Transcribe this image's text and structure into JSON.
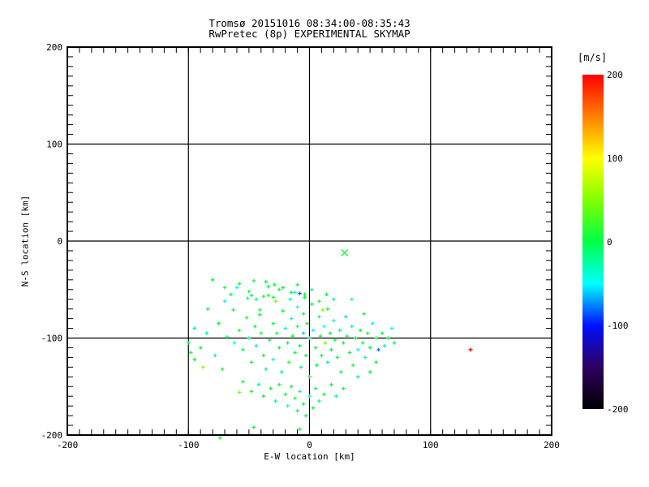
{
  "page": {
    "background": "#ffffff",
    "foreground": "#000000"
  },
  "chart_data": {
    "type": "scatter",
    "title": "Tromsø 20151016 08:34:00-08:35:43",
    "subtitle": "RwPretec (8p) EXPERIMENTAL SKYMAP",
    "xlabel": "E-W location [km]",
    "ylabel": "N-S location [km]",
    "xlim": [
      -200,
      200
    ],
    "ylim": [
      -200,
      200
    ],
    "xticks": [
      -200,
      -100,
      0,
      100,
      200
    ],
    "yticks": [
      -200,
      -100,
      0,
      100,
      200
    ],
    "minor_tick_step": 10,
    "grid": true,
    "axis_color": "#000000",
    "marker": "plus",
    "legend_position": "colorbar-right",
    "colorbar": {
      "label": "[m/s]",
      "min": -200,
      "max": 200,
      "ticks": [
        200,
        100,
        0,
        -100,
        -200
      ],
      "stops": [
        [
          -200,
          "#000000"
        ],
        [
          -150,
          "#2e0060"
        ],
        [
          -100,
          "#0010ff"
        ],
        [
          -50,
          "#00ffff"
        ],
        [
          0,
          "#00ff46"
        ],
        [
          50,
          "#80ff00"
        ],
        [
          100,
          "#ffff00"
        ],
        [
          150,
          "#ff8000"
        ],
        [
          200,
          "#ff0000"
        ]
      ]
    },
    "points": [
      [
        -80,
        -40,
        0
      ],
      [
        -60,
        -48,
        -45
      ],
      [
        -46,
        -41,
        5
      ],
      [
        -34,
        -47,
        0
      ],
      [
        -29,
        -45,
        8
      ],
      [
        -25,
        -50,
        10
      ],
      [
        -48,
        -56,
        0
      ],
      [
        -51,
        -59,
        -25
      ],
      [
        -38,
        -57,
        5
      ],
      [
        -34,
        -56,
        12
      ],
      [
        -15,
        -53,
        0
      ],
      [
        -12,
        -53,
        -50
      ],
      [
        -8,
        -54,
        -85
      ],
      [
        -4,
        -55,
        5
      ],
      [
        -63,
        -71,
        0
      ],
      [
        -52,
        -79,
        15
      ],
      [
        -41,
        -71,
        8
      ],
      [
        -41,
        -76,
        0
      ],
      [
        -70,
        -62,
        -40
      ],
      [
        -75,
        -85,
        0
      ],
      [
        -85,
        -95,
        -30
      ],
      [
        -90,
        -110,
        5
      ],
      [
        -95,
        -122,
        0
      ],
      [
        -78,
        -118,
        -20
      ],
      [
        -72,
        -132,
        8
      ],
      [
        -68,
        -99,
        0
      ],
      [
        -62,
        -105,
        -45
      ],
      [
        -58,
        -92,
        10
      ],
      [
        -55,
        -112,
        0
      ],
      [
        -50,
        -100,
        -30
      ],
      [
        -48,
        -125,
        5
      ],
      [
        -45,
        -88,
        0
      ],
      [
        -44,
        -108,
        -55
      ],
      [
        -40,
        -95,
        12
      ],
      [
        -38,
        -118,
        0
      ],
      [
        -36,
        -132,
        -20
      ],
      [
        -33,
        -102,
        5
      ],
      [
        -30,
        -85,
        0
      ],
      [
        -30,
        -122,
        -40
      ],
      [
        -28,
        -62,
        45
      ],
      [
        -27,
        -95,
        8
      ],
      [
        -25,
        -110,
        0
      ],
      [
        -23,
        -135,
        -25
      ],
      [
        -22,
        -72,
        5
      ],
      [
        -20,
        -90,
        -50
      ],
      [
        -18,
        -105,
        0
      ],
      [
        -17,
        -125,
        10
      ],
      [
        -15,
        -80,
        -30
      ],
      [
        -14,
        -98,
        5
      ],
      [
        -12,
        -115,
        0
      ],
      [
        -10,
        -68,
        -45
      ],
      [
        -10,
        -88,
        8
      ],
      [
        -8,
        -108,
        0
      ],
      [
        -7,
        -130,
        -20
      ],
      [
        -5,
        -75,
        5
      ],
      [
        -5,
        -95,
        -60
      ],
      [
        -3,
        -118,
        0
      ],
      [
        -2,
        -85,
        10
      ],
      [
        0,
        -100,
        -35
      ],
      [
        0,
        -140,
        5
      ],
      [
        2,
        -65,
        0
      ],
      [
        3,
        -92,
        -45
      ],
      [
        5,
        -110,
        8
      ],
      [
        6,
        -128,
        0
      ],
      [
        8,
        -78,
        -25
      ],
      [
        9,
        -98,
        5
      ],
      [
        10,
        -118,
        0
      ],
      [
        12,
        -88,
        -50
      ],
      [
        13,
        -105,
        40
      ],
      [
        15,
        -70,
        0
      ],
      [
        15,
        -125,
        -30
      ],
      [
        17,
        -95,
        5
      ],
      [
        18,
        -112,
        0
      ],
      [
        20,
        -82,
        -45
      ],
      [
        21,
        -102,
        8
      ],
      [
        23,
        -120,
        0
      ],
      [
        25,
        -92,
        -20
      ],
      [
        26,
        -135,
        5
      ],
      [
        28,
        -105,
        0
      ],
      [
        30,
        -78,
        -55
      ],
      [
        31,
        -98,
        10
      ],
      [
        33,
        -115,
        0
      ],
      [
        35,
        -88,
        -30
      ],
      [
        36,
        -128,
        5
      ],
      [
        38,
        -100,
        0
      ],
      [
        40,
        -112,
        -45
      ],
      [
        42,
        -92,
        8
      ],
      [
        44,
        -105,
        0
      ],
      [
        46,
        -120,
        -25
      ],
      [
        48,
        -95,
        5
      ],
      [
        50,
        -110,
        0
      ],
      [
        52,
        -85,
        -40
      ],
      [
        55,
        -100,
        10
      ],
      [
        57,
        -112,
        -80
      ],
      [
        60,
        -95,
        0
      ],
      [
        62,
        -108,
        -30
      ],
      [
        65,
        -100,
        5
      ],
      [
        68,
        -90,
        -50
      ],
      [
        70,
        -105,
        0
      ],
      [
        11,
        -71,
        50
      ],
      [
        -55,
        -145,
        0
      ],
      [
        -48,
        -155,
        5
      ],
      [
        -42,
        -148,
        -30
      ],
      [
        -38,
        -160,
        0
      ],
      [
        -32,
        -152,
        8
      ],
      [
        -28,
        -165,
        -20
      ],
      [
        -25,
        -148,
        0
      ],
      [
        -20,
        -158,
        5
      ],
      [
        -18,
        -170,
        -40
      ],
      [
        -15,
        -150,
        0
      ],
      [
        -12,
        -162,
        10
      ],
      [
        -10,
        -175,
        0
      ],
      [
        -8,
        -155,
        -25
      ],
      [
        -5,
        -168,
        5
      ],
      [
        -3,
        -180,
        0
      ],
      [
        0,
        -160,
        -35
      ],
      [
        3,
        -172,
        8
      ],
      [
        5,
        -152,
        0
      ],
      [
        8,
        -165,
        -20
      ],
      [
        12,
        -158,
        5
      ],
      [
        -46,
        -192,
        0
      ],
      [
        -8,
        -194,
        5
      ],
      [
        18,
        -148,
        0
      ],
      [
        22,
        -160,
        -30
      ],
      [
        28,
        -152,
        5
      ],
      [
        -58,
        -156,
        50
      ],
      [
        -74,
        -203,
        10
      ],
      [
        -58,
        -44,
        0
      ],
      [
        -50,
        -52,
        5
      ],
      [
        -44,
        -60,
        -25
      ],
      [
        -36,
        -42,
        0
      ],
      [
        -30,
        -58,
        8
      ],
      [
        -22,
        -48,
        0
      ],
      [
        -16,
        -60,
        -40
      ],
      [
        -10,
        -45,
        5
      ],
      [
        -4,
        -58,
        0
      ],
      [
        2,
        -50,
        -20
      ],
      [
        8,
        -62,
        5
      ],
      [
        14,
        -55,
        0
      ],
      [
        20,
        -60,
        -30
      ],
      [
        -65,
        -55,
        0
      ],
      [
        -70,
        -48,
        5
      ],
      [
        -100,
        -105,
        0
      ],
      [
        -95,
        -90,
        -25
      ],
      [
        -88,
        -130,
        55
      ],
      [
        -84,
        -70,
        0
      ],
      [
        -98,
        -115,
        8
      ],
      [
        35,
        -60,
        -45
      ],
      [
        45,
        -75,
        0
      ],
      [
        55,
        -125,
        5
      ],
      [
        40,
        -140,
        -20
      ],
      [
        50,
        -135,
        0
      ]
    ],
    "markers": [
      {
        "shape": "x",
        "x": 29,
        "y": -12,
        "v": 8
      },
      {
        "shape": "plus",
        "x": 133,
        "y": -112,
        "v": 195
      }
    ]
  }
}
